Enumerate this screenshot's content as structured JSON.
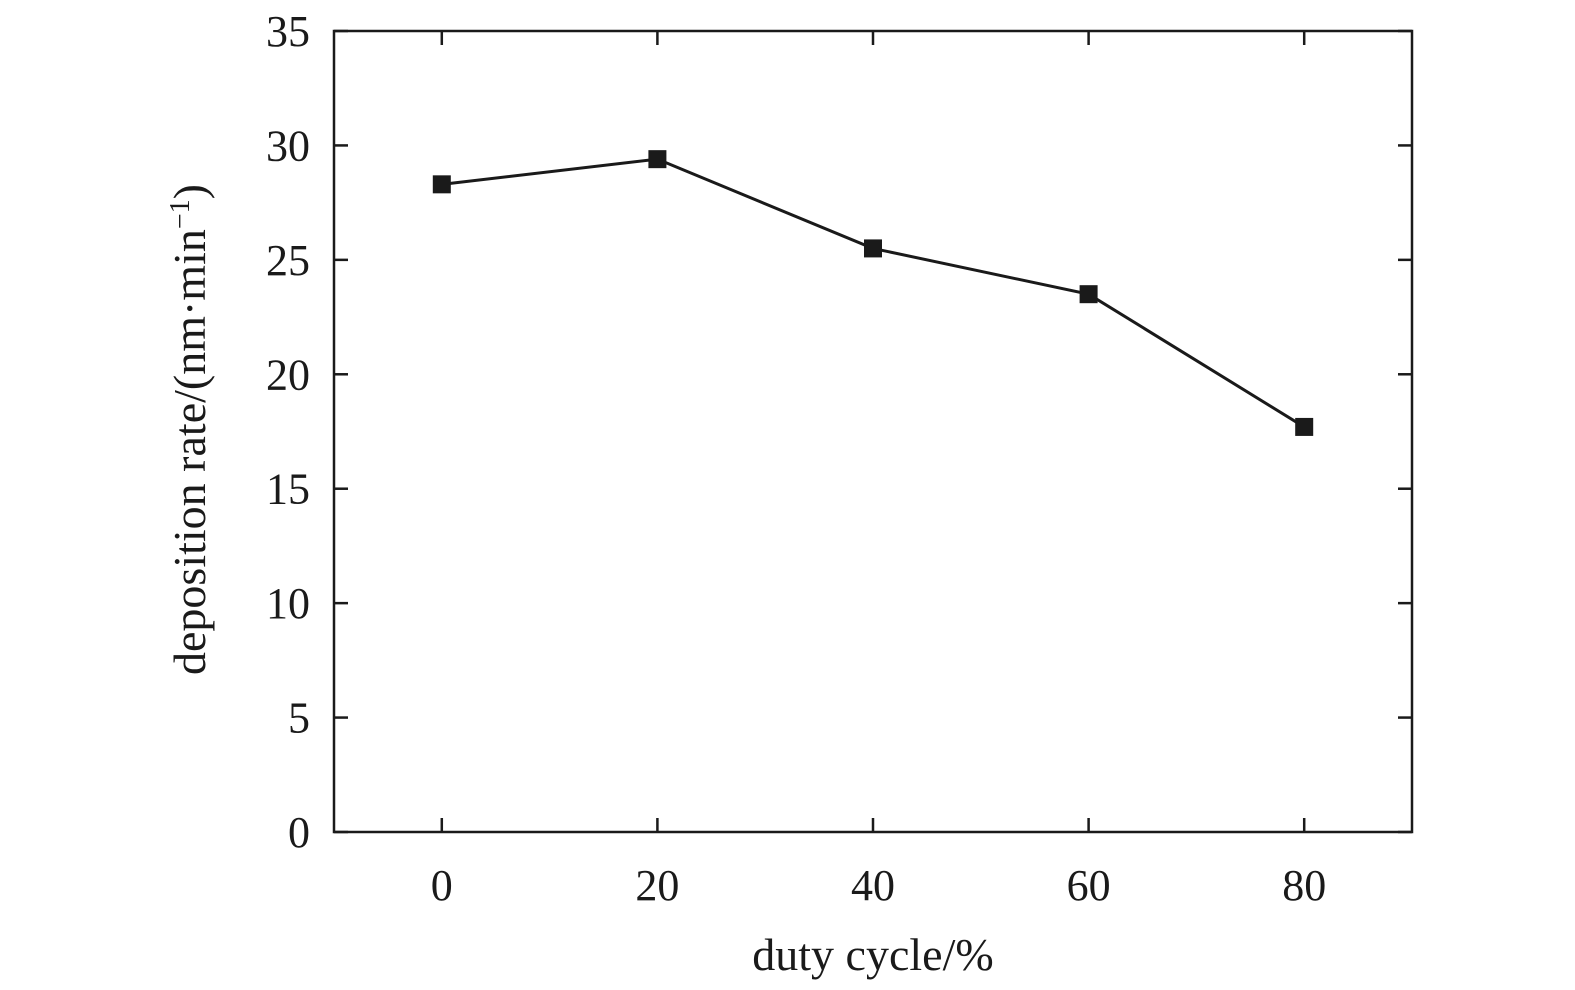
{
  "chart_data": {
    "type": "line",
    "title": "",
    "xlabel": "duty cycle/%",
    "ylabel": "deposition rate/(nm·min",
    "ylabel_superscript": "−1",
    "ylabel_close": ")",
    "x": [
      0,
      20,
      40,
      60,
      80
    ],
    "series": [
      {
        "values": [
          28.3,
          29.4,
          25.5,
          23.5,
          17.7
        ],
        "marker": "square",
        "color": "#1a1a1a"
      }
    ],
    "xlim": [
      -10,
      90
    ],
    "ylim": [
      0,
      35
    ],
    "xticks": [
      "0",
      "20",
      "40",
      "60",
      "80"
    ],
    "yticks": [
      "0",
      "5",
      "10",
      "15",
      "20",
      "25",
      "30",
      "35"
    ],
    "grid": false,
    "legend": "none"
  }
}
